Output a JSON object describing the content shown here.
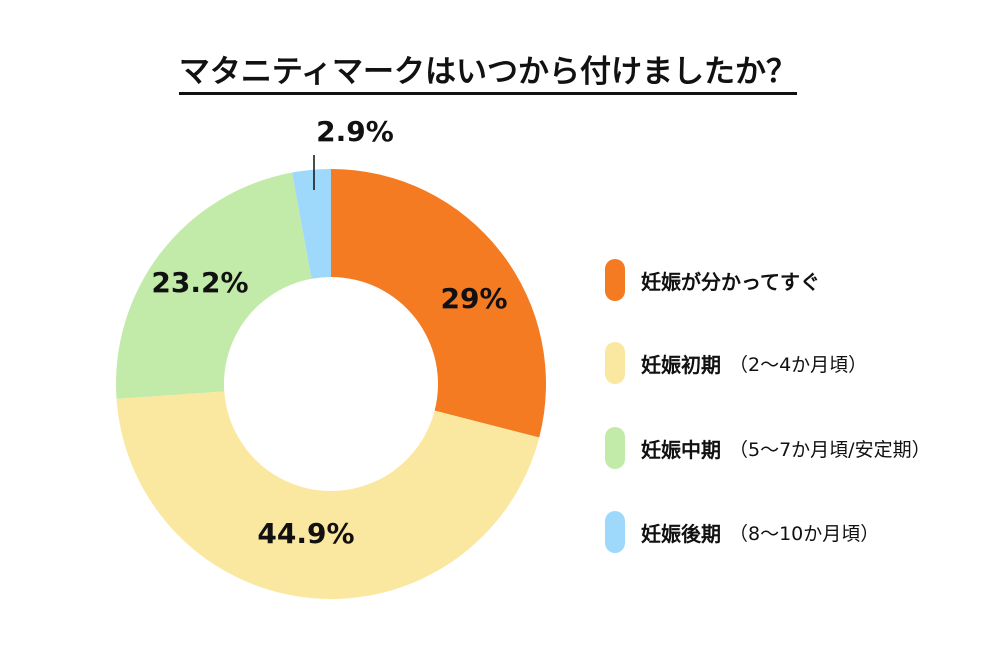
{
  "chart_data": {
    "type": "pie",
    "variant": "donut",
    "title": "マタニティマークはいつから付けましたか？",
    "slices": [
      {
        "label": "妊娠が分かってすぐ",
        "sub": "",
        "value": 29,
        "display": "29%",
        "color": "#f57b22"
      },
      {
        "label": "妊娠初期",
        "sub": "（2〜4か月頃）",
        "value": 44.9,
        "display": "44.9%",
        "color": "#fbe8a0"
      },
      {
        "label": "妊娠中期",
        "sub": "（5〜7か月頃/安定期）",
        "value": 23.2,
        "display": "23.2%",
        "color": "#c2eaa9"
      },
      {
        "label": "妊娠後期",
        "sub": "（8〜10か月頃）",
        "value": 2.9,
        "display": "2.9%",
        "color": "#9ed8fb"
      }
    ],
    "start": "top",
    "direction": "clockwise",
    "legend": "right"
  }
}
